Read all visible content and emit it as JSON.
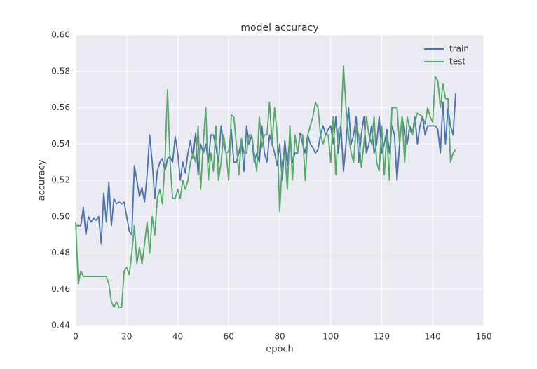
{
  "chart_data": {
    "type": "line",
    "title": "model accuracy",
    "xlabel": "epoch",
    "ylabel": "accuracy",
    "x": [
      0,
      1,
      2,
      3,
      4,
      5,
      6,
      7,
      8,
      9,
      10,
      11,
      12,
      13,
      14,
      15,
      16,
      17,
      18,
      19,
      20,
      21,
      22,
      23,
      24,
      25,
      26,
      27,
      28,
      29,
      30,
      31,
      32,
      33,
      34,
      35,
      36,
      37,
      38,
      39,
      40,
      41,
      42,
      43,
      44,
      45,
      46,
      47,
      48,
      49,
      50,
      51,
      52,
      53,
      54,
      55,
      56,
      57,
      58,
      59,
      60,
      61,
      62,
      63,
      64,
      65,
      66,
      67,
      68,
      69,
      70,
      71,
      72,
      73,
      74,
      75,
      76,
      77,
      78,
      79,
      80,
      81,
      82,
      83,
      84,
      85,
      86,
      87,
      88,
      89,
      90,
      91,
      92,
      93,
      94,
      95,
      96,
      97,
      98,
      99,
      100,
      101,
      102,
      103,
      104,
      105,
      106,
      107,
      108,
      109,
      110,
      111,
      112,
      113,
      114,
      115,
      116,
      117,
      118,
      119,
      120,
      121,
      122,
      123,
      124,
      125,
      126,
      127,
      128,
      129,
      130,
      131,
      132,
      133,
      134,
      135,
      136,
      137,
      138,
      139,
      140,
      141,
      142,
      143,
      144,
      145,
      146,
      147,
      148,
      149
    ],
    "series": [
      {
        "name": "train",
        "color": "#4c72b0",
        "values": [
          0.495,
          0.495,
          0.495,
          0.505,
          0.49,
          0.5,
          0.497,
          0.499,
          0.498,
          0.5,
          0.485,
          0.513,
          0.497,
          0.519,
          0.495,
          0.51,
          0.507,
          0.508,
          0.507,
          0.508,
          0.5,
          0.492,
          0.49,
          0.528,
          0.52,
          0.511,
          0.516,
          0.508,
          0.523,
          0.545,
          0.53,
          0.51,
          0.525,
          0.53,
          0.532,
          0.525,
          0.532,
          0.533,
          0.53,
          0.544,
          0.535,
          0.52,
          0.53,
          0.524,
          0.535,
          0.542,
          0.532,
          0.546,
          0.523,
          0.54,
          0.535,
          0.54,
          0.53,
          0.545,
          0.545,
          0.538,
          0.53,
          0.55,
          0.54,
          0.535,
          0.536,
          0.548,
          0.53,
          0.53,
          0.535,
          0.542,
          0.525,
          0.55,
          0.54,
          0.545,
          0.53,
          0.535,
          0.53,
          0.55,
          0.535,
          0.53,
          0.545,
          0.54,
          0.535,
          0.528,
          0.54,
          0.52,
          0.542,
          0.528,
          0.545,
          0.53,
          0.535,
          0.535,
          0.546,
          0.54,
          0.535,
          0.545,
          0.54,
          0.538,
          0.535,
          0.537,
          0.545,
          0.55,
          0.545,
          0.548,
          0.55,
          0.54,
          0.555,
          0.535,
          0.55,
          0.525,
          0.54,
          0.56,
          0.54,
          0.545,
          0.555,
          0.53,
          0.545,
          0.555,
          0.535,
          0.54,
          0.55,
          0.535,
          0.54,
          0.555,
          0.535,
          0.54,
          0.548,
          0.535,
          0.55,
          0.545,
          0.52,
          0.54,
          0.555,
          0.545,
          0.54,
          0.55,
          0.545,
          0.555,
          0.54,
          0.55,
          0.555,
          0.545,
          0.55,
          0.55,
          0.55,
          0.55,
          0.548,
          0.535,
          0.563,
          0.54,
          0.56,
          0.55,
          0.545,
          0.568
        ]
      },
      {
        "name": "test",
        "color": "#55a868",
        "values": [
          0.497,
          0.463,
          0.47,
          0.467,
          0.467,
          0.467,
          0.467,
          0.467,
          0.467,
          0.467,
          0.467,
          0.467,
          0.467,
          0.463,
          0.453,
          0.45,
          0.453,
          0.45,
          0.45,
          0.47,
          0.472,
          0.468,
          0.48,
          0.495,
          0.474,
          0.483,
          0.474,
          0.485,
          0.497,
          0.48,
          0.5,
          0.49,
          0.51,
          0.515,
          0.507,
          0.53,
          0.57,
          0.53,
          0.51,
          0.51,
          0.515,
          0.51,
          0.52,
          0.515,
          0.52,
          0.53,
          0.535,
          0.53,
          0.55,
          0.515,
          0.54,
          0.56,
          0.52,
          0.535,
          0.525,
          0.55,
          0.52,
          0.53,
          0.545,
          0.535,
          0.52,
          0.556,
          0.555,
          0.54,
          0.523,
          0.543,
          0.535,
          0.535,
          0.545,
          0.545,
          0.535,
          0.525,
          0.555,
          0.538,
          0.545,
          0.545,
          0.563,
          0.54,
          0.56,
          0.545,
          0.503,
          0.53,
          0.535,
          0.515,
          0.55,
          0.52,
          0.545,
          0.535,
          0.545,
          0.545,
          0.52,
          0.545,
          0.55,
          0.555,
          0.563,
          0.56,
          0.545,
          0.54,
          0.545,
          0.545,
          0.53,
          0.555,
          0.523,
          0.548,
          0.55,
          0.583,
          0.56,
          0.545,
          0.535,
          0.53,
          0.55,
          0.545,
          0.527,
          0.54,
          0.555,
          0.545,
          0.54,
          0.555,
          0.53,
          0.525,
          0.55,
          0.523,
          0.545,
          0.52,
          0.56,
          0.56,
          0.56,
          0.54,
          0.555,
          0.53,
          0.555,
          0.548,
          0.545,
          0.552,
          0.557,
          0.556,
          0.555,
          0.551,
          0.56,
          0.555,
          0.552,
          0.577,
          0.575,
          0.56,
          0.573,
          0.565,
          0.565,
          0.53,
          0.535,
          0.537
        ]
      }
    ],
    "xlim": [
      0,
      160
    ],
    "xticks": [
      0,
      20,
      40,
      60,
      80,
      100,
      120,
      140,
      160
    ],
    "ylim": [
      0.44,
      0.6
    ],
    "yticks": [
      {
        "value": 0.44,
        "label": "0.44"
      },
      {
        "value": 0.46,
        "label": "0.46"
      },
      {
        "value": 0.48,
        "label": "0.48"
      },
      {
        "value": 0.5,
        "label": "0.50"
      },
      {
        "value": 0.52,
        "label": "0.52"
      },
      {
        "value": 0.54,
        "label": "0.54"
      },
      {
        "value": 0.56,
        "label": "0.56"
      },
      {
        "value": 0.58,
        "label": "0.58"
      },
      {
        "value": 0.6,
        "label": "0.60"
      }
    ],
    "grid": true,
    "legend": "upper right"
  }
}
